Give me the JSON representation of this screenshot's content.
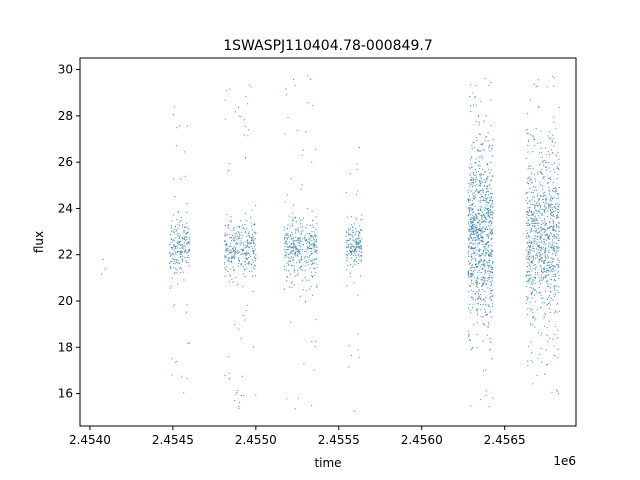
{
  "chart_data": {
    "type": "scatter",
    "title": "1SWASPJ110404.78-000849.7",
    "xlabel": "time",
    "ylabel": "flux",
    "x_offset_label": "1e6",
    "xlim": [
      2.45394,
      2.45693
    ],
    "ylim": [
      14.6,
      30.5
    ],
    "x_ticks": [
      2.454,
      2.4545,
      2.455,
      2.4555,
      2.456,
      2.4565
    ],
    "x_tick_labels": [
      "2.4540",
      "2.4545",
      "2.4550",
      "2.4555",
      "2.4560",
      "2.4565"
    ],
    "y_ticks": [
      16,
      18,
      20,
      22,
      24,
      26,
      28,
      30
    ],
    "y_tick_labels": [
      "16",
      "18",
      "20",
      "22",
      "24",
      "26",
      "28",
      "30"
    ],
    "grid": false,
    "marker_color": "#1f77b4",
    "series": [
      {
        "clusters": [
          {
            "x_range": [
              2.45405,
              2.4541
            ],
            "center": 21.7,
            "spread": 0.35,
            "outlier_min": 19.8,
            "outlier_max": 21.8,
            "n": 4
          },
          {
            "x_range": [
              2.45448,
              2.4546
            ],
            "center": 22.4,
            "spread": 0.55,
            "outlier_min": 15.3,
            "outlier_max": 28.6,
            "n": 220
          },
          {
            "x_range": [
              2.45481,
              2.455
            ],
            "center": 22.3,
            "spread": 0.6,
            "outlier_min": 15.2,
            "outlier_max": 29.7,
            "n": 340
          },
          {
            "x_range": [
              2.45517,
              2.45537
            ],
            "center": 22.3,
            "spread": 0.7,
            "outlier_min": 15.1,
            "outlier_max": 29.8,
            "n": 380
          },
          {
            "x_range": [
              2.45554,
              2.45564
            ],
            "center": 22.4,
            "spread": 0.5,
            "outlier_min": 15.2,
            "outlier_max": 26.8,
            "n": 180
          },
          {
            "x_range": [
              2.45628,
              2.45643
            ],
            "center": 22.8,
            "spread": 1.8,
            "outlier_min": 15.2,
            "outlier_max": 29.8,
            "n": 900
          },
          {
            "x_range": [
              2.45663,
              2.45683
            ],
            "center": 22.6,
            "spread": 1.7,
            "outlier_min": 15.7,
            "outlier_max": 29.8,
            "n": 900
          }
        ]
      }
    ]
  }
}
